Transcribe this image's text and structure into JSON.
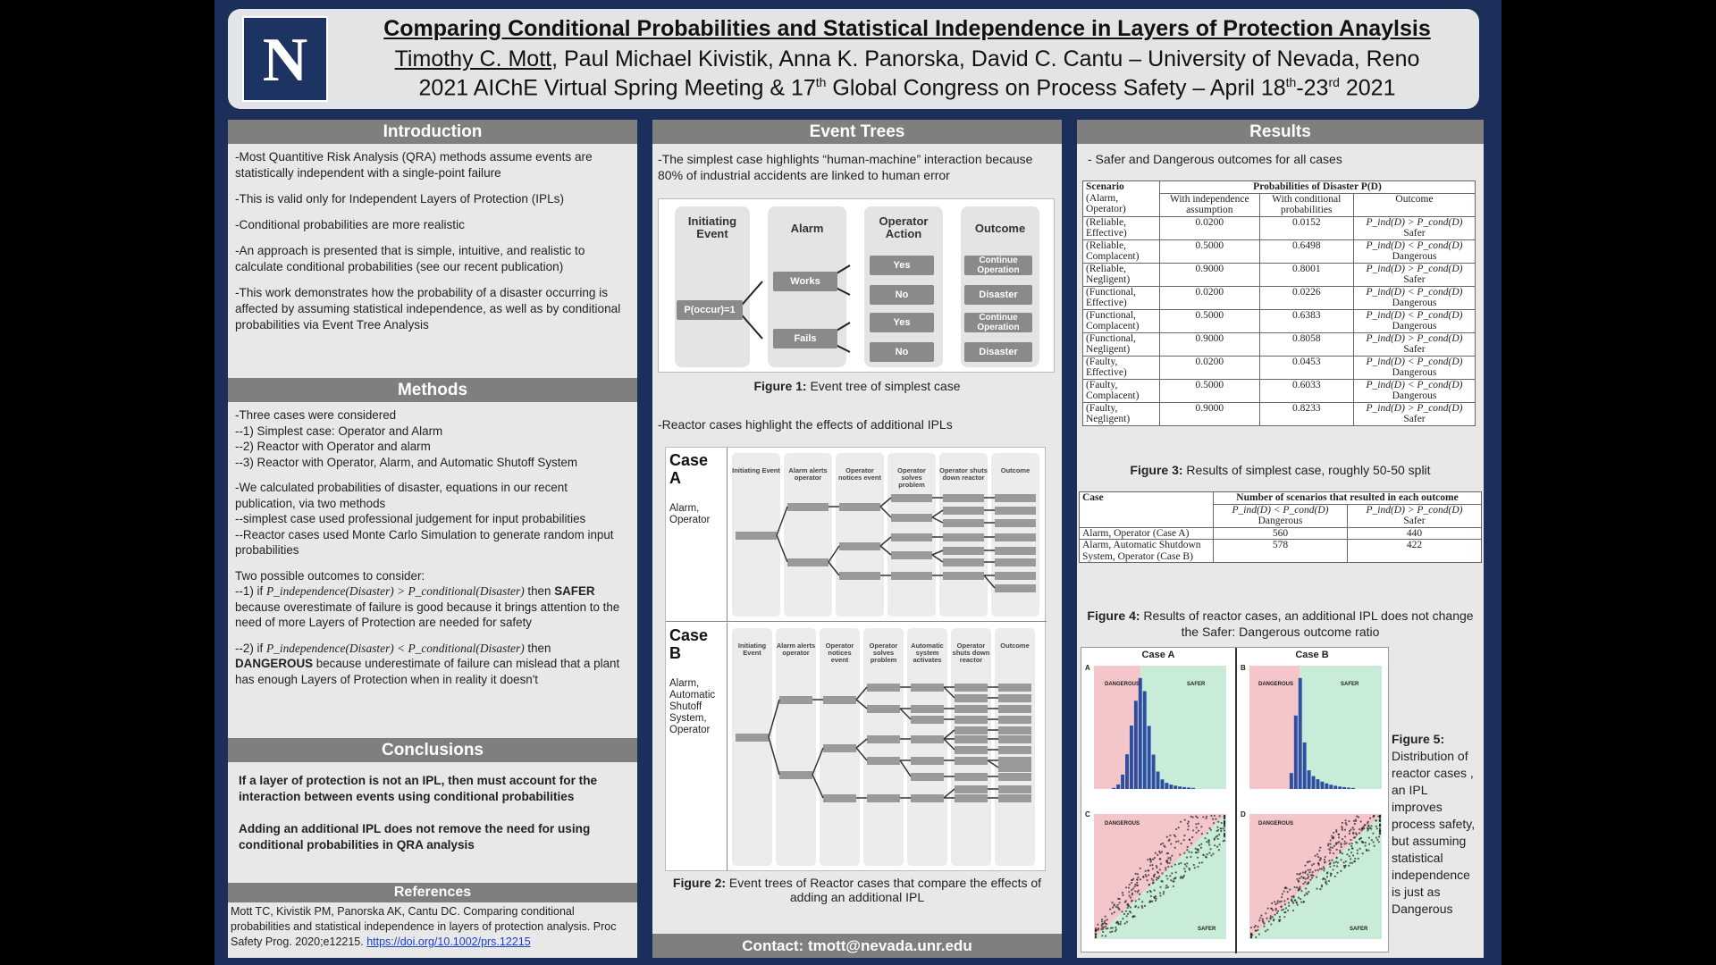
{
  "header": {
    "logo_letter": "N",
    "title": "Comparing Conditional Probabilities and Statistical Independence in Layers of Protection Anaylsis",
    "author_presenter": "Timothy C. Mott",
    "authors_rest": ", Paul Michael Kivistik, Anna K. Panorska, David C. Cantu – University of Nevada, Reno",
    "meeting_a": "2021 AIChE Virtual Spring Meeting & 17",
    "meeting_sup1": "th",
    "meeting_b": " Global Congress on Process Safety – April 18",
    "meeting_sup2": "th",
    "meeting_c": "-23",
    "meeting_sup3": "rd",
    "meeting_d": " 2021"
  },
  "introduction": {
    "heading": "Introduction",
    "points": [
      "-Most Quantitive Risk Analysis (QRA) methods assume  events are statistically independent with a single-point failure",
      "-This is valid only for Independent Layers of Protection (IPLs)",
      "-Conditional probabilities are more realistic",
      "-An approach is presented that is simple, intuitive, and realistic to calculate conditional probabilities (see our recent publication)",
      "-This work demonstrates how the probability of a disaster occurring is affected by assuming statistical independence, as well as by conditional probabilities via Event Tree Analysis"
    ]
  },
  "methods": {
    "heading": "Methods",
    "cases_intro": "-Three cases were considered",
    "cases": [
      "--1) Simplest case: Operator and Alarm",
      "--2) Reactor with Operator and alarm",
      "--3) Reactor with Operator, Alarm, and Automatic Shutoff System"
    ],
    "calc_intro": "-We calculated probabilities of disaster, equations in our recent publication, via two methods",
    "calc_items": [
      "--simplest case used professional judgement for input probabilities",
      "--Reactor cases used Monte Carlo Simulation to generate random input probabilities"
    ],
    "outcomes_intro": "Two possible outcomes to consider:",
    "outcome1_prefix": "--1) if ",
    "outcome1_math": "P_independence(Disaster) > P_conditional(Disaster)",
    "outcome1_then": " then ",
    "outcome1_word": "SAFER",
    "outcome1_text": " because overestimate of failure is good because it brings attention to the need of more Layers of Protection are needed for safety",
    "outcome2_prefix": "--2) if ",
    "outcome2_math": "P_independence(Disaster) < P_conditional(Disaster)",
    "outcome2_then": " then ",
    "outcome2_word": "DANGEROUS",
    "outcome2_text": " because underestimate of failure can mislead that a plant has enough Layers of Protection when in reality it doesn't"
  },
  "conclusions": {
    "heading": "Conclusions",
    "points": [
      "If a layer of protection is not an IPL, then must account for the interaction between events using conditional probabilities",
      "Adding an additional IPL does not remove the need for using conditional probabilities in QRA analysis"
    ]
  },
  "references": {
    "heading": "References",
    "text": "Mott TC, Kivistik PM, Panorska AK, Cantu DC. Comparing conditional probabilities and statistical independence in layers of protection analysis. Proc Safety Prog. 2020;e12215. ",
    "link": "https://doi.org/10.1002/prs.12215"
  },
  "event_trees": {
    "heading": "Event Trees",
    "intro": "-The simplest case highlights “human-machine” interaction because 80% of industrial accidents are linked to human error",
    "tree": {
      "columns": [
        "Initiating Event",
        "Alarm",
        "Operator Action",
        "Outcome"
      ],
      "initiating": "P(occur)=1",
      "alarm": [
        "Works",
        "Fails"
      ],
      "operator": [
        "Yes",
        "No",
        "Yes",
        "No"
      ],
      "outcomes": [
        "Continue Operation",
        "Disaster",
        "Continue Operation",
        "Disaster"
      ]
    },
    "fig1_label": "Figure 1:",
    "fig1_text": " Event tree of simplest case",
    "reactor_intro": "-Reactor cases highlight the effects of additional IPLs",
    "case_a": {
      "label": "Case A",
      "sub": "Alarm, Operator",
      "columns": [
        "Initiating Event",
        "Alarm alerts operator",
        "Operator notices event",
        "Operator solves problem",
        "Operator shuts down reactor",
        "Outcome"
      ]
    },
    "case_b": {
      "label": "Case B",
      "sub": "Alarm, Automatic Shutoff System, Operator",
      "columns": [
        "Initiating Event",
        "Alarm alerts operator",
        "Operator notices event",
        "Operator solves problem",
        "Automatic system activates",
        "Operator shuts down reactor",
        "Outcome"
      ]
    },
    "fig2_label": "Figure 2:",
    "fig2_text": " Event trees of Reactor cases that compare the effects of adding an additional IPL",
    "contact": "Contact: tmott@nevada.unr.edu"
  },
  "results": {
    "heading": "Results",
    "intro": "- Safer and Dangerous outcomes for all cases",
    "table1": {
      "scenario_head": "Scenario",
      "scenario_sub": "(Alarm, Operator)",
      "group_head": "Probabilities of Disaster P(D)",
      "col_ind": "With independence assumption",
      "col_cond": "With conditional probabilities",
      "col_out": "Outcome",
      "rows": [
        {
          "scenario": "(Reliable, Effective)",
          "ind": "0.0200",
          "cond": "0.0152",
          "rel": "P_ind(D) > P_cond(D)",
          "out": "Safer"
        },
        {
          "scenario": "(Reliable, Complacent)",
          "ind": "0.5000",
          "cond": "0.6498",
          "rel": "P_ind(D) < P_cond(D)",
          "out": "Dangerous"
        },
        {
          "scenario": "(Reliable, Negligent)",
          "ind": "0.9000",
          "cond": "0.8001",
          "rel": "P_ind(D) > P_cond(D)",
          "out": "Safer"
        },
        {
          "scenario": "(Functional, Effective)",
          "ind": "0.0200",
          "cond": "0.0226",
          "rel": "P_ind(D) < P_cond(D)",
          "out": "Dangerous"
        },
        {
          "scenario": "(Functional, Complacent)",
          "ind": "0.5000",
          "cond": "0.6383",
          "rel": "P_ind(D) < P_cond(D)",
          "out": "Dangerous"
        },
        {
          "scenario": "(Functional, Negligent)",
          "ind": "0.9000",
          "cond": "0.8058",
          "rel": "P_ind(D) > P_cond(D)",
          "out": "Safer"
        },
        {
          "scenario": "(Faulty, Effective)",
          "ind": "0.0200",
          "cond": "0.0453",
          "rel": "P_ind(D) < P_cond(D)",
          "out": "Dangerous"
        },
        {
          "scenario": "(Faulty, Complacent)",
          "ind": "0.5000",
          "cond": "0.6033",
          "rel": "P_ind(D) < P_cond(D)",
          "out": "Dangerous"
        },
        {
          "scenario": "(Faulty, Negligent)",
          "ind": "0.9000",
          "cond": "0.8233",
          "rel": "P_ind(D) > P_cond(D)",
          "out": "Safer"
        }
      ]
    },
    "fig3_label": "Figure 3:",
    "fig3_text": " Results of simplest case, roughly 50-50 split",
    "table2": {
      "case_head": "Case",
      "group_head": "Number of scenarios that resulted in each outcome",
      "col_dang": "P_ind(D) < P_cond(D)",
      "col_dang_word": "Dangerous",
      "col_safe": "P_ind(D) > P_cond(D)",
      "col_safe_word": "Safer",
      "rows": [
        {
          "case": "Alarm, Operator (Case A)",
          "dangerous": "560",
          "safer": "440"
        },
        {
          "case": "Alarm, Automatic Shutdown System, Operator (Case B)",
          "dangerous": "578",
          "safer": "422"
        }
      ]
    },
    "fig4_label": "Figure 4:",
    "fig4_text": " Results of reactor cases, an additional IPL does not change the Safer: Dangerous outcome ratio",
    "fig5": {
      "case_a_title": "Case A",
      "case_b_title": "Case B",
      "panel_tags": [
        "A",
        "B",
        "C",
        "D"
      ],
      "dangerous": "DANGEROUS",
      "safer": "SAFER",
      "label": "Figure 5:",
      "text": "Distribution of reactor cases , an IPL improves process safety, but assuming statistical independence is just as Dangerous"
    }
  },
  "colors": {
    "background": "#1c2f5a",
    "section_head": "#7f7f7f",
    "dangerous_zone": "#f4c6c9",
    "safer_zone": "#c9ecd8",
    "hist_bar": "#2d4fa3"
  }
}
